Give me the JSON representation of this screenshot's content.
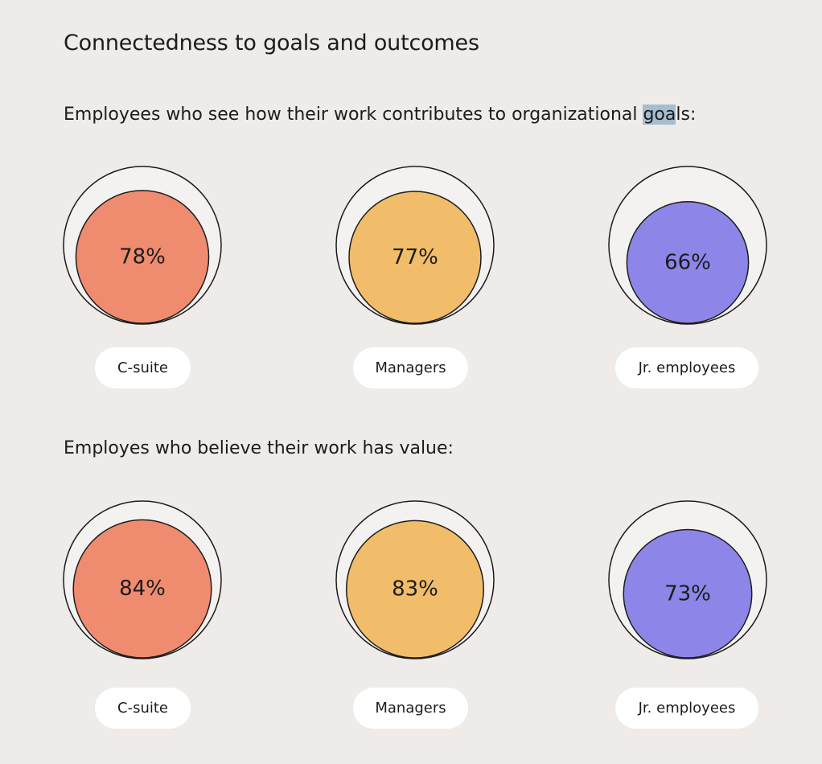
{
  "page": {
    "title": "Connectedness to goals and outcomes"
  },
  "colors": {
    "background": "#eeebe9",
    "outer_circle": "#f4f2f1",
    "stroke": "#1c1c1c",
    "c_suite": "#ef8c70",
    "managers": "#f1bd6a",
    "jr_employees": "#8d85e8",
    "pill": "#ffffff",
    "highlight": "#a6bdd0"
  },
  "chart_data": [
    {
      "type": "bubble",
      "title_parts": [
        "Employees who see how their work contributes to organizational ",
        "goa",
        "l",
        "s:"
      ],
      "categories": [
        "C-suite",
        "Managers",
        "Jr. employees"
      ],
      "values": [
        78,
        77,
        66
      ],
      "labels": [
        "78%",
        "77%",
        "66%"
      ],
      "unit": "%"
    },
    {
      "type": "bubble",
      "title": "Employes who believe their work has value:",
      "categories": [
        "C-suite",
        "Managers",
        "Jr. employees"
      ],
      "values": [
        84,
        83,
        73
      ],
      "labels": [
        "84%",
        "83%",
        "73%"
      ],
      "unit": "%"
    }
  ]
}
